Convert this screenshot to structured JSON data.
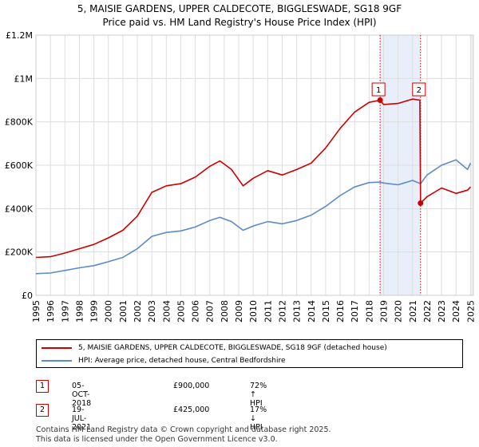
{
  "header": {
    "title_line1": "5, MAISIE GARDENS, UPPER CALDECOTE, BIGGLESWADE, SG18 9GF",
    "title_line2": "Price paid vs. HM Land Registry's House Price Index (HPI)"
  },
  "colors": {
    "property": "#cc0000",
    "hpi": "#5b8cc8",
    "grid": "#dddddd",
    "shade": "#e8effa",
    "vline": "#cc0000"
  },
  "chart_data": {
    "type": "line",
    "title": "Price paid vs. HM Land Registry's House Price Index (HPI)",
    "xlabel": "",
    "ylabel": "",
    "xlim": [
      1995,
      2025.2
    ],
    "ylim": [
      0,
      1200000
    ],
    "x_ticks": [
      1995,
      1996,
      1997,
      1998,
      1999,
      2000,
      2001,
      2002,
      2003,
      2004,
      2005,
      2006,
      2007,
      2008,
      2009,
      2010,
      2011,
      2012,
      2013,
      2014,
      2015,
      2016,
      2017,
      2018,
      2019,
      2020,
      2021,
      2022,
      2023,
      2024,
      2025
    ],
    "y_ticks": [
      {
        "value": 0,
        "label": "£0"
      },
      {
        "value": 200000,
        "label": "£200K"
      },
      {
        "value": 400000,
        "label": "£400K"
      },
      {
        "value": 600000,
        "label": "£600K"
      },
      {
        "value": 800000,
        "label": "£800K"
      },
      {
        "value": 1000000,
        "label": "£1M"
      },
      {
        "value": 1200000,
        "label": "£1.2M"
      }
    ],
    "shaded_region": [
      2018.76,
      2021.55
    ],
    "series": [
      {
        "name": "5, MAISIE GARDENS, UPPER CALDECOTE, BIGGLESWADE, SG18 9GF (detached house)",
        "x": [
          1995,
          1996,
          1997,
          1998,
          1999,
          2000,
          2001,
          2002,
          2003,
          2004,
          2005,
          2006,
          2007,
          2007.7,
          2008.5,
          2009.3,
          2010,
          2011,
          2012,
          2013,
          2014,
          2015,
          2016,
          2017,
          2018,
          2018.76,
          2019,
          2020,
          2021,
          2021.5,
          2021.55,
          2022,
          2023,
          2024,
          2024.8,
          2025
        ],
        "values": [
          175000,
          178000,
          195000,
          215000,
          235000,
          265000,
          300000,
          365000,
          475000,
          505000,
          515000,
          545000,
          595000,
          620000,
          580000,
          505000,
          540000,
          575000,
          555000,
          580000,
          610000,
          680000,
          770000,
          845000,
          890000,
          900000,
          880000,
          885000,
          905000,
          900000,
          425000,
          455000,
          495000,
          470000,
          485000,
          500000
        ]
      },
      {
        "name": "HPI: Average price, detached house, Central Bedfordshire",
        "x": [
          1995,
          1996,
          1997,
          1998,
          1999,
          2000,
          2001,
          2002,
          2003,
          2004,
          2005,
          2006,
          2007,
          2007.7,
          2008.5,
          2009.3,
          2010,
          2011,
          2012,
          2013,
          2014,
          2015,
          2016,
          2017,
          2018,
          2018.76,
          2019,
          2020,
          2021,
          2021.55,
          2022,
          2023,
          2024,
          2024.8,
          2025
        ],
        "values": [
          100000,
          103000,
          115000,
          127000,
          137000,
          155000,
          175000,
          215000,
          272000,
          290000,
          297000,
          315000,
          345000,
          360000,
          340000,
          300000,
          320000,
          340000,
          330000,
          345000,
          370000,
          410000,
          460000,
          500000,
          520000,
          522000,
          518000,
          510000,
          530000,
          515000,
          555000,
          600000,
          625000,
          580000,
          610000
        ]
      }
    ],
    "sale_markers": [
      {
        "label": "1",
        "x": 2018.76,
        "value": 900000
      },
      {
        "label": "2",
        "x": 2021.55,
        "value": 425000
      }
    ]
  },
  "legend": {
    "property_label": "5, MAISIE GARDENS, UPPER CALDECOTE, BIGGLESWADE, SG18 9GF (detached house)",
    "hpi_label": "HPI: Average price, detached house, Central Bedfordshire"
  },
  "sales": [
    {
      "num": "1",
      "date": "05-OCT-2018",
      "price": "£900,000",
      "hpi": "72% ↑ HPI"
    },
    {
      "num": "2",
      "date": "19-JUL-2021",
      "price": "£425,000",
      "hpi": "17% ↓ HPI"
    }
  ],
  "footer": {
    "line1": "Contains HM Land Registry data © Crown copyright and database right 2025.",
    "line2": "This data is licensed under the Open Government Licence v3.0."
  }
}
